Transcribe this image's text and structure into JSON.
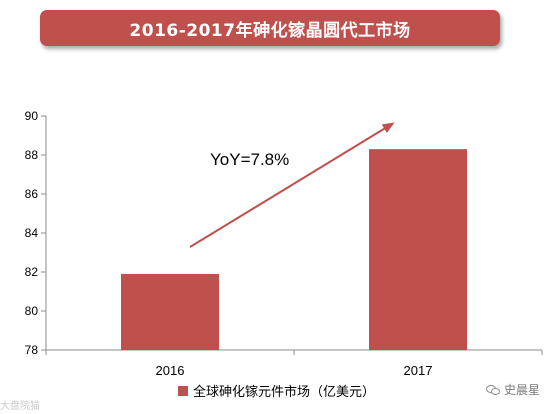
{
  "banner_title": "2016-2017年砷化镓晶圆代工市场",
  "chart_data": {
    "type": "bar",
    "categories": [
      "2016",
      "2017"
    ],
    "series": [
      {
        "name": "全球砷化镓元件市场（亿美元）",
        "values": [
          81.9,
          88.3
        ]
      }
    ],
    "ylim": [
      78,
      90
    ],
    "yticks": [
      78,
      80,
      82,
      84,
      86,
      88,
      90
    ],
    "annotation": "YoY=7.8%",
    "bar_color": "#c0504d",
    "arrow_color": "#c0504d",
    "legend_position": "bottom",
    "grid": false
  },
  "watermark_left": "大盘院猫",
  "watermark_right": "史晨星"
}
